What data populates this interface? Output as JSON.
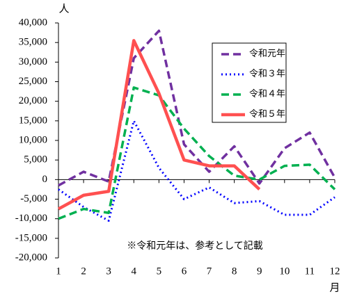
{
  "chart_data": {
    "type": "line",
    "y_unit": "人",
    "x_unit": "月",
    "annotation": "※令和元年は、参考として記載",
    "categories": [
      "1",
      "2",
      "3",
      "4",
      "5",
      "6",
      "7",
      "8",
      "9",
      "10",
      "11",
      "12"
    ],
    "series": [
      {
        "name": "令和元年",
        "color": "#7030a0",
        "style": "dashed",
        "values": [
          -1500,
          2000,
          -500,
          31000,
          38000,
          9000,
          2000,
          8500,
          -1000,
          8000,
          12000,
          500
        ]
      },
      {
        "name": "令和３年",
        "color": "#0000ff",
        "style": "dotted",
        "values": [
          -2500,
          -7000,
          -10500,
          15000,
          3000,
          -5000,
          -2000,
          -6000,
          -5500,
          -9000,
          -9000,
          -4500
        ]
      },
      {
        "name": "令和４年",
        "color": "#00b050",
        "style": "dashed",
        "values": [
          -10000,
          -7500,
          -8500,
          23500,
          21500,
          13000,
          6000,
          1000,
          0,
          3500,
          3800,
          -2500
        ]
      },
      {
        "name": "令和５年",
        "color": "#ff5050",
        "style": "solid",
        "values": [
          -7500,
          -4000,
          -3000,
          35500,
          22000,
          5000,
          3500,
          3500,
          -2500,
          null,
          null,
          null
        ]
      }
    ],
    "ylim": [
      -20000,
      40000
    ],
    "yticks": [
      {
        "value": -20000,
        "label": "-20,000"
      },
      {
        "value": -15000,
        "label": "-15,000"
      },
      {
        "value": -10000,
        "label": "-10,000"
      },
      {
        "value": -5000,
        "label": "-5,000"
      },
      0,
      {
        "value": 5000,
        "label": "5,000"
      },
      {
        "value": 10000,
        "label": "10,000"
      },
      {
        "value": 15000,
        "label": "15,000"
      },
      {
        "value": 20000,
        "label": "20,000"
      },
      {
        "value": 25000,
        "label": "25,000"
      },
      {
        "value": 30000,
        "label": "30,000"
      },
      {
        "value": 35000,
        "label": "35,000"
      },
      {
        "value": 40000,
        "label": "40,000"
      }
    ],
    "grid": false,
    "legend": "upper right",
    "negative_tick_color": "#ff0000"
  }
}
